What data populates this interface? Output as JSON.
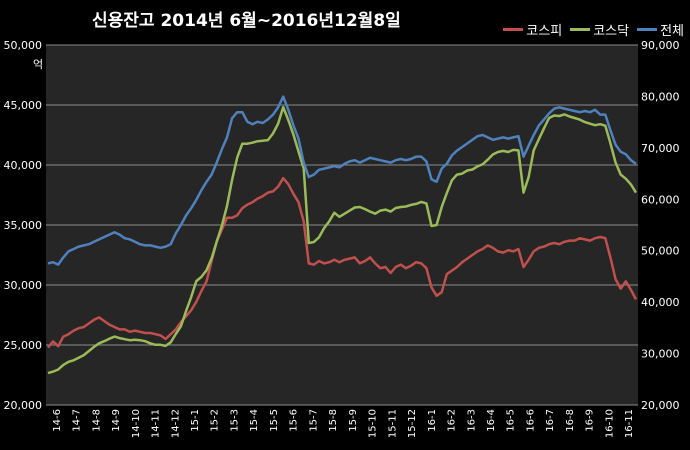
{
  "chart_data": {
    "type": "line",
    "title": "신용잔고 2014년 6월~2016년12월8일",
    "unit_label": "억",
    "legend_position": "top-right",
    "grid": true,
    "y_left": {
      "ylim": [
        20000,
        50000
      ],
      "ticks": [
        "20,000",
        "25,000",
        "30,000",
        "35,000",
        "40,000",
        "45,000",
        "50,000"
      ]
    },
    "y_right": {
      "ylim": [
        20000,
        90000
      ],
      "ticks": [
        "20,000",
        "30,000",
        "40,000",
        "50,000",
        "60,000",
        "70,000",
        "80,000",
        "90,000"
      ]
    },
    "x_ticks": [
      "14-6",
      "14-7",
      "14-8",
      "14-9",
      "14-10",
      "14-11",
      "14-12",
      "15-1",
      "15-2",
      "15-3",
      "15-4",
      "15-5",
      "15-6",
      "15-7",
      "15-8",
      "15-9",
      "15-10",
      "15-11",
      "15-12",
      "16-1",
      "16-2",
      "16-3",
      "16-4",
      "16-5",
      "16-6",
      "16-7",
      "16-8",
      "16-9",
      "16-10",
      "16-11"
    ],
    "series": [
      {
        "name": "코스피",
        "color": "#c0504d",
        "axis": "left",
        "values": [
          24800,
          25300,
          24900,
          25700,
          25900,
          26200,
          26400,
          26500,
          26800,
          27100,
          27300,
          27000,
          26700,
          26500,
          26300,
          26300,
          26100,
          26200,
          26100,
          26000,
          26000,
          25900,
          25800,
          25500,
          25900,
          26300,
          26900,
          27400,
          27900,
          28600,
          29500,
          30300,
          32000,
          33600,
          34600,
          35600,
          35600,
          35800,
          36400,
          36700,
          36900,
          37200,
          37400,
          37700,
          37800,
          38200,
          38900,
          38400,
          37600,
          36900,
          35300,
          31800,
          31700,
          32000,
          31800,
          31900,
          32100,
          31900,
          32100,
          32200,
          32300,
          31800,
          32000,
          32300,
          31800,
          31400,
          31500,
          31000,
          31500,
          31700,
          31400,
          31600,
          31900,
          31800,
          31400,
          29800,
          29100,
          29400,
          30900,
          31200,
          31500,
          31900,
          32200,
          32500,
          32800,
          33000,
          33300,
          33100,
          32800,
          32700,
          32900,
          32800,
          33000,
          31500,
          32100,
          32800,
          33100,
          33200,
          33400,
          33500,
          33400,
          33600,
          33700,
          33700,
          33900,
          33800,
          33700,
          33900,
          34000,
          33900,
          32300,
          30500,
          29700,
          30300,
          29600,
          28800
        ]
      },
      {
        "name": "코스닥",
        "color": "#9bbb59",
        "axis": "right",
        "values": [
          26200,
          26500,
          26900,
          27800,
          28400,
          28700,
          29200,
          29700,
          30500,
          31300,
          32000,
          32400,
          32900,
          33300,
          33000,
          32800,
          32600,
          32700,
          32600,
          32400,
          32000,
          31700,
          31700,
          31500,
          32200,
          33800,
          35300,
          38300,
          41000,
          44100,
          44900,
          46200,
          48500,
          51800,
          54800,
          58700,
          63800,
          68100,
          70800,
          70800,
          71000,
          71300,
          71400,
          71500,
          72800,
          74700,
          77900,
          75400,
          72600,
          69300,
          66000,
          51500,
          51700,
          52600,
          54400,
          55700,
          57400,
          56600,
          57200,
          57800,
          58400,
          58500,
          58100,
          57600,
          57200,
          57800,
          58000,
          57600,
          58300,
          58500,
          58600,
          58900,
          59100,
          59500,
          59200,
          54800,
          55000,
          58500,
          61200,
          63700,
          64800,
          65000,
          65600,
          65800,
          66400,
          66800,
          67700,
          68700,
          69200,
          69400,
          69200,
          69600,
          69500,
          61300,
          64300,
          69500,
          71700,
          73800,
          75800,
          76300,
          76200,
          76500,
          76100,
          75800,
          75500,
          75000,
          74700,
          74400,
          74600,
          74300,
          70900,
          67200,
          64800,
          64000,
          62900,
          61300
        ]
      },
      {
        "name": "전체",
        "color": "#4f81bd",
        "axis": "left",
        "values": [
          31800,
          31900,
          31700,
          32300,
          32800,
          33000,
          33200,
          33300,
          33400,
          33600,
          33800,
          34000,
          34200,
          34400,
          34200,
          33900,
          33800,
          33600,
          33400,
          33300,
          33300,
          33200,
          33100,
          33200,
          33400,
          34300,
          35000,
          35800,
          36400,
          37100,
          37900,
          38600,
          39200,
          40200,
          41300,
          42300,
          43900,
          44400,
          44400,
          43600,
          43400,
          43600,
          43500,
          43800,
          44200,
          44800,
          45700,
          44600,
          43300,
          42200,
          40200,
          39000,
          39200,
          39600,
          39700,
          39800,
          39900,
          39800,
          40100,
          40300,
          40400,
          40200,
          40400,
          40600,
          40500,
          40400,
          40300,
          40200,
          40400,
          40500,
          40400,
          40500,
          40700,
          40700,
          40300,
          38800,
          38600,
          39700,
          40100,
          40800,
          41200,
          41500,
          41800,
          42100,
          42400,
          42500,
          42300,
          42100,
          42200,
          42300,
          42200,
          42300,
          42400,
          40700,
          41600,
          42500,
          43300,
          43800,
          44300,
          44700,
          44800,
          44700,
          44600,
          44500,
          44400,
          44500,
          44400,
          44600,
          44200,
          44200,
          42900,
          41700,
          41100,
          40900,
          40400,
          40100
        ]
      }
    ]
  }
}
